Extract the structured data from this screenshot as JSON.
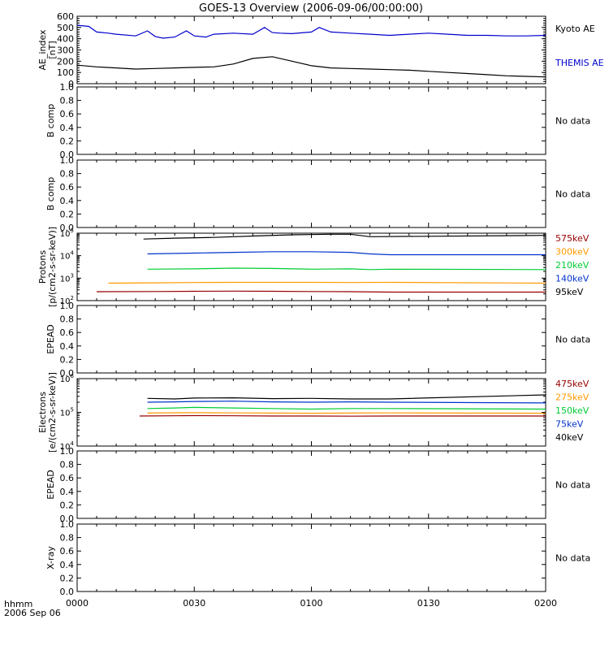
{
  "title": "GOES-13 Overview (2006-09-06/00:00:00)",
  "footer": {
    "fmt_label": "hhmm",
    "date_label": "2006 Sep 06"
  },
  "x_axis": {
    "range": [
      "00:00",
      "02:00"
    ],
    "ticks": [
      "0000",
      "0030",
      "0100",
      "0130",
      "0200"
    ]
  },
  "chart_data": [
    {
      "type": "line",
      "ylabel": "AE_index [nT]",
      "ylim": [
        0,
        600
      ],
      "yticks": [
        "600",
        "500",
        "400",
        "300",
        "200",
        "100",
        "0"
      ],
      "series": [
        {
          "name": "Kyoto AE",
          "color": "#000000",
          "x": [
            0,
            5,
            10,
            15,
            20,
            25,
            30,
            35,
            40,
            45,
            50,
            55,
            60,
            65,
            70,
            75,
            80,
            85,
            90,
            95,
            100,
            105,
            110,
            115,
            120
          ],
          "y": [
            165,
            150,
            140,
            130,
            135,
            140,
            145,
            150,
            175,
            225,
            240,
            200,
            160,
            140,
            135,
            130,
            125,
            120,
            110,
            100,
            90,
            80,
            70,
            65,
            60
          ]
        },
        {
          "name": "THEMIS AE",
          "color": "#0000cc",
          "x": [
            0,
            3,
            5,
            8,
            10,
            15,
            18,
            20,
            22,
            25,
            28,
            30,
            33,
            35,
            40,
            45,
            48,
            50,
            52,
            55,
            60,
            62,
            65,
            70,
            75,
            80,
            85,
            90,
            95,
            100,
            105,
            110,
            115,
            120
          ],
          "y": [
            520,
            510,
            460,
            450,
            440,
            425,
            470,
            420,
            405,
            415,
            470,
            425,
            415,
            440,
            450,
            440,
            500,
            455,
            450,
            445,
            460,
            500,
            460,
            450,
            440,
            430,
            440,
            450,
            440,
            430,
            430,
            425,
            425,
            430
          ]
        }
      ]
    },
    {
      "type": "line",
      "ylabel": "B comp",
      "ylim": [
        0,
        1
      ],
      "yticks": [
        "1.0",
        "0.8",
        "0.6",
        "0.4",
        "0.2",
        "0.0"
      ],
      "series": [],
      "note": "No data"
    },
    {
      "type": "line",
      "ylabel": "B comp",
      "ylim": [
        0,
        1
      ],
      "yticks": [
        "1.0",
        "0.8",
        "0.6",
        "0.4",
        "0.2",
        "0.0"
      ],
      "series": [],
      "note": "No data"
    },
    {
      "type": "line",
      "ylabel": "Protons [p/(cm2-s-sr-keV)]",
      "log": true,
      "ylim": [
        100,
        100000
      ],
      "yticks": [
        "10^5",
        "10^4",
        "10^3",
        "10^2"
      ],
      "series": [
        {
          "name": "95keV",
          "color": "#000000",
          "x": [
            17,
            25,
            35,
            45,
            55,
            65,
            70,
            75,
            120
          ],
          "y": [
            55000,
            60000,
            65000,
            75000,
            85000,
            90000,
            90000,
            70000,
            80000
          ]
        },
        {
          "name": "140keV",
          "color": "#0033cc",
          "x": [
            18,
            30,
            40,
            50,
            60,
            70,
            75,
            80,
            120
          ],
          "y": [
            12000,
            13000,
            14000,
            15000,
            15000,
            14000,
            12000,
            11000,
            11000
          ]
        },
        {
          "name": "210keV",
          "color": "#00cc33",
          "x": [
            18,
            30,
            40,
            50,
            60,
            70,
            75,
            80,
            120
          ],
          "y": [
            2500,
            2600,
            2800,
            2700,
            2500,
            2600,
            2400,
            2500,
            2400
          ]
        },
        {
          "name": "300keV",
          "color": "#ff9900",
          "x": [
            8,
            20,
            30,
            40,
            50,
            60,
            70,
            80,
            120
          ],
          "y": [
            600,
            620,
            640,
            650,
            650,
            650,
            640,
            650,
            600
          ]
        },
        {
          "name": "575keV",
          "color": "#990000",
          "x": [
            5,
            20,
            30,
            40,
            50,
            60,
            70,
            80,
            120
          ],
          "y": [
            250,
            255,
            260,
            265,
            260,
            255,
            250,
            240,
            240
          ]
        }
      ]
    },
    {
      "type": "line",
      "ylabel": "EPEAD",
      "ylim": [
        0,
        1
      ],
      "yticks": [
        "1.0",
        "0.8",
        "0.6",
        "0.4",
        "0.2",
        "0.0"
      ],
      "series": [],
      "note": "No data"
    },
    {
      "type": "line",
      "ylabel": "Electrons [e/(cm2-s-sr-keV)]",
      "log": true,
      "ylim": [
        10000,
        1000000
      ],
      "yticks": [
        "10^6",
        "10^5",
        "10^4"
      ],
      "series": [
        {
          "name": "40keV",
          "color": "#000000",
          "x": [
            18,
            25,
            30,
            40,
            50,
            60,
            70,
            80,
            120
          ],
          "y": [
            260000,
            250000,
            265000,
            270000,
            255000,
            260000,
            250000,
            250000,
            330000
          ]
        },
        {
          "name": "75keV",
          "color": "#0033cc",
          "x": [
            18,
            25,
            30,
            40,
            50,
            60,
            70,
            80,
            120
          ],
          "y": [
            200000,
            205000,
            210000,
            215000,
            205000,
            200000,
            205000,
            200000,
            190000
          ]
        },
        {
          "name": "150keV",
          "color": "#00cc33",
          "x": [
            18,
            25,
            30,
            40,
            50,
            60,
            70,
            80,
            120
          ],
          "y": [
            130000,
            135000,
            140000,
            135000,
            130000,
            125000,
            130000,
            130000,
            125000
          ]
        },
        {
          "name": "275keV",
          "color": "#ff9900",
          "x": [
            18,
            25,
            30,
            40,
            50,
            60,
            70,
            80,
            120
          ],
          "y": [
            95000,
            97000,
            98000,
            96000,
            95000,
            94000,
            95000,
            96000,
            94000
          ]
        },
        {
          "name": "475keV",
          "color": "#990000",
          "x": [
            16,
            25,
            30,
            40,
            50,
            60,
            70,
            80,
            120
          ],
          "y": [
            78000,
            79000,
            80000,
            79000,
            78000,
            78000,
            77000,
            78000,
            78000
          ]
        }
      ]
    },
    {
      "type": "line",
      "ylabel": "EPEAD",
      "ylim": [
        0,
        1
      ],
      "yticks": [
        "1.0",
        "0.8",
        "0.6",
        "0.4",
        "0.2",
        "0.0"
      ],
      "series": [],
      "note": "No data"
    },
    {
      "type": "line",
      "ylabel": "X-ray",
      "ylim": [
        0,
        1
      ],
      "yticks": [
        "1.0",
        "0.8",
        "0.6",
        "0.4",
        "0.2",
        "0.0"
      ],
      "series": [],
      "note": "No data"
    }
  ]
}
